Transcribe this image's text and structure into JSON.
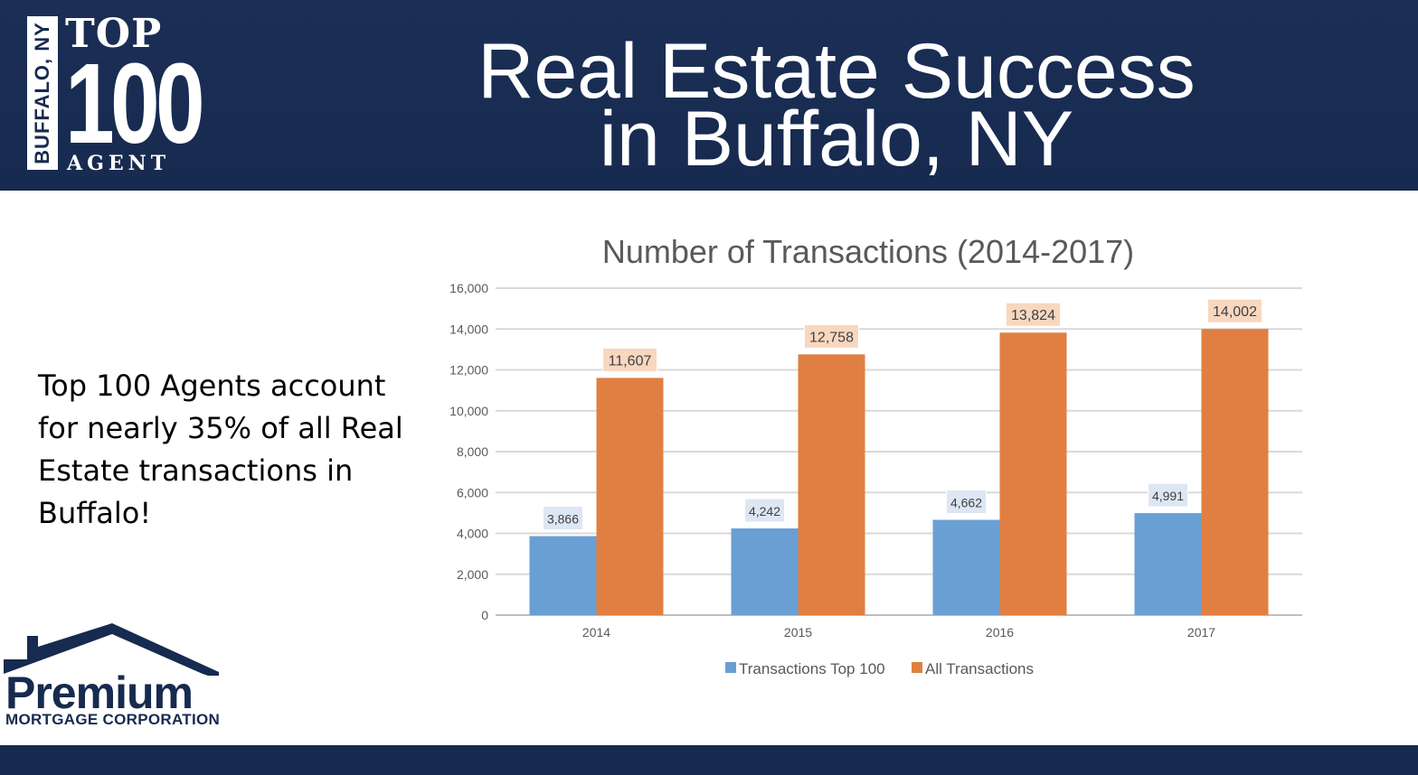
{
  "header": {
    "title_line1": "Real Estate Success",
    "title_line2": "in Buffalo, NY",
    "background": "#172a4f"
  },
  "logo_top100": {
    "location": "BUFFALO, NY",
    "top": "TOP",
    "number": "100",
    "agent": "AGENT"
  },
  "side_text": "Top 100 Agents account for nearly 35% of all Real Estate transactions in Buffalo!",
  "company_logo": {
    "name": "Premium",
    "subtitle": "MORTGAGE CORPORATION"
  },
  "chart_data": {
    "type": "bar",
    "title": "Number of Transactions (2014-2017)",
    "categories": [
      "2014",
      "2015",
      "2016",
      "2017"
    ],
    "series": [
      {
        "name": "Transactions Top 100",
        "values": [
          3866,
          4242,
          4662,
          4991
        ],
        "labels": [
          "3,866",
          "4,242",
          "4,662",
          "4,991"
        ],
        "color": "#6a9fd4"
      },
      {
        "name": "All Transactions",
        "values": [
          11607,
          12758,
          13824,
          14002
        ],
        "labels": [
          "11,607",
          "12,758",
          "13,824",
          "14,002"
        ],
        "color": "#e07f41"
      }
    ],
    "ylim": [
      0,
      16000
    ],
    "yticks": [
      0,
      2000,
      4000,
      6000,
      8000,
      10000,
      12000,
      14000,
      16000
    ],
    "ytick_labels": [
      "0",
      "2,000",
      "4,000",
      "6,000",
      "8,000",
      "10,000",
      "12,000",
      "14,000",
      "16,000"
    ],
    "grid": true,
    "legend_position": "bottom"
  }
}
